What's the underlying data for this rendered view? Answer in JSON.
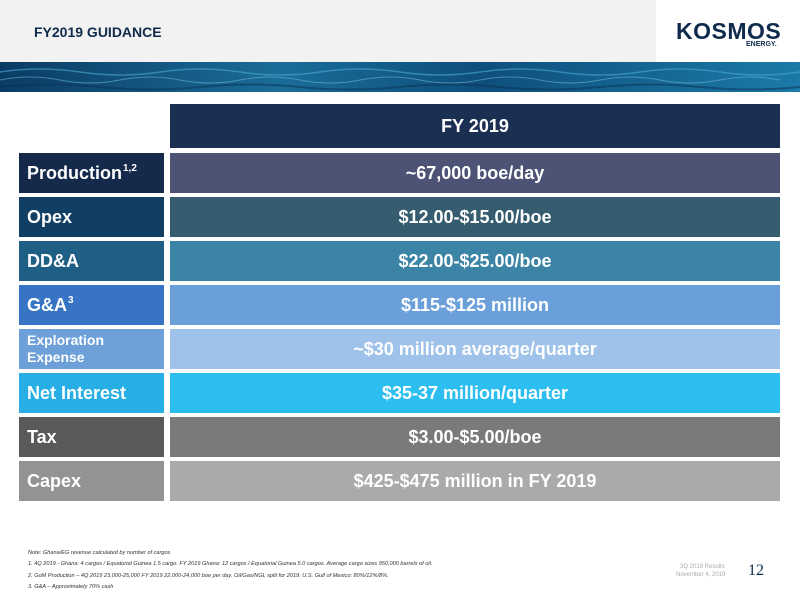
{
  "header": {
    "title": "FY2019 GUIDANCE",
    "logo_text": "KOSMOS",
    "logo_sub": "ENERGY."
  },
  "table": {
    "column_header": "FY 2019",
    "rows": [
      {
        "label": "Production",
        "sup": "1,2",
        "value": "~67,000 boe/day",
        "label_color": "#15294b",
        "value_color": "#4c5375"
      },
      {
        "label": "Opex",
        "sup": "",
        "value": "$12.00-$15.00/boe",
        "label_color": "#103f63",
        "value_color": "#355c6f"
      },
      {
        "label": "DD&A",
        "sup": "",
        "value": "$22.00-$25.00/boe",
        "label_color": "#1f5f85",
        "value_color": "#3b84a5"
      },
      {
        "label": "G&A",
        "sup": "3",
        "value": "$115-$125 million",
        "label_color": "#3775c4",
        "value_color": "#6a9fda"
      },
      {
        "label": "Exploration Expense",
        "sup": "",
        "value": "~$30 million average/quarter",
        "label_color": "#6d9fd9",
        "value_color": "#9fc2ea"
      },
      {
        "label": "Net Interest",
        "sup": "",
        "value": "$35-37 million/quarter",
        "label_color": "#27aee4",
        "value_color": "#2dbef0"
      },
      {
        "label": "Tax",
        "sup": "",
        "value": "$3.00-$5.00/boe",
        "label_color": "#5a5a5a",
        "value_color": "#7a7a7a"
      },
      {
        "label": "Capex",
        "sup": "",
        "value": "$425-$475 million in FY 2019",
        "label_color": "#939393",
        "value_color": "#aaaaaa"
      }
    ]
  },
  "notes": [
    "Note: Ghana/EG revenue calculated by number of cargos",
    "1. 4Q 2019 - Ghana: 4 cargos / Equatorial Guinea 1.5 cargo. FY 2019 Ghana: 12 cargos / Equatorial Guinea 5.0 cargos. Average cargo sizes 950,000 barrels of oil.",
    "2. GoM Production – 4Q 2019 23,000-25,000 FY 2019 22,000-24,000 boe per day. Oil/Gas/NGL split for 2019: U.S. Gulf of Mexico: 80%/12%/8%.",
    "3. G&A – Approximately 70% cash"
  ],
  "footer": {
    "line1": "3Q 2019 Results",
    "line2": "November 4, 2019",
    "page_number": "12"
  }
}
